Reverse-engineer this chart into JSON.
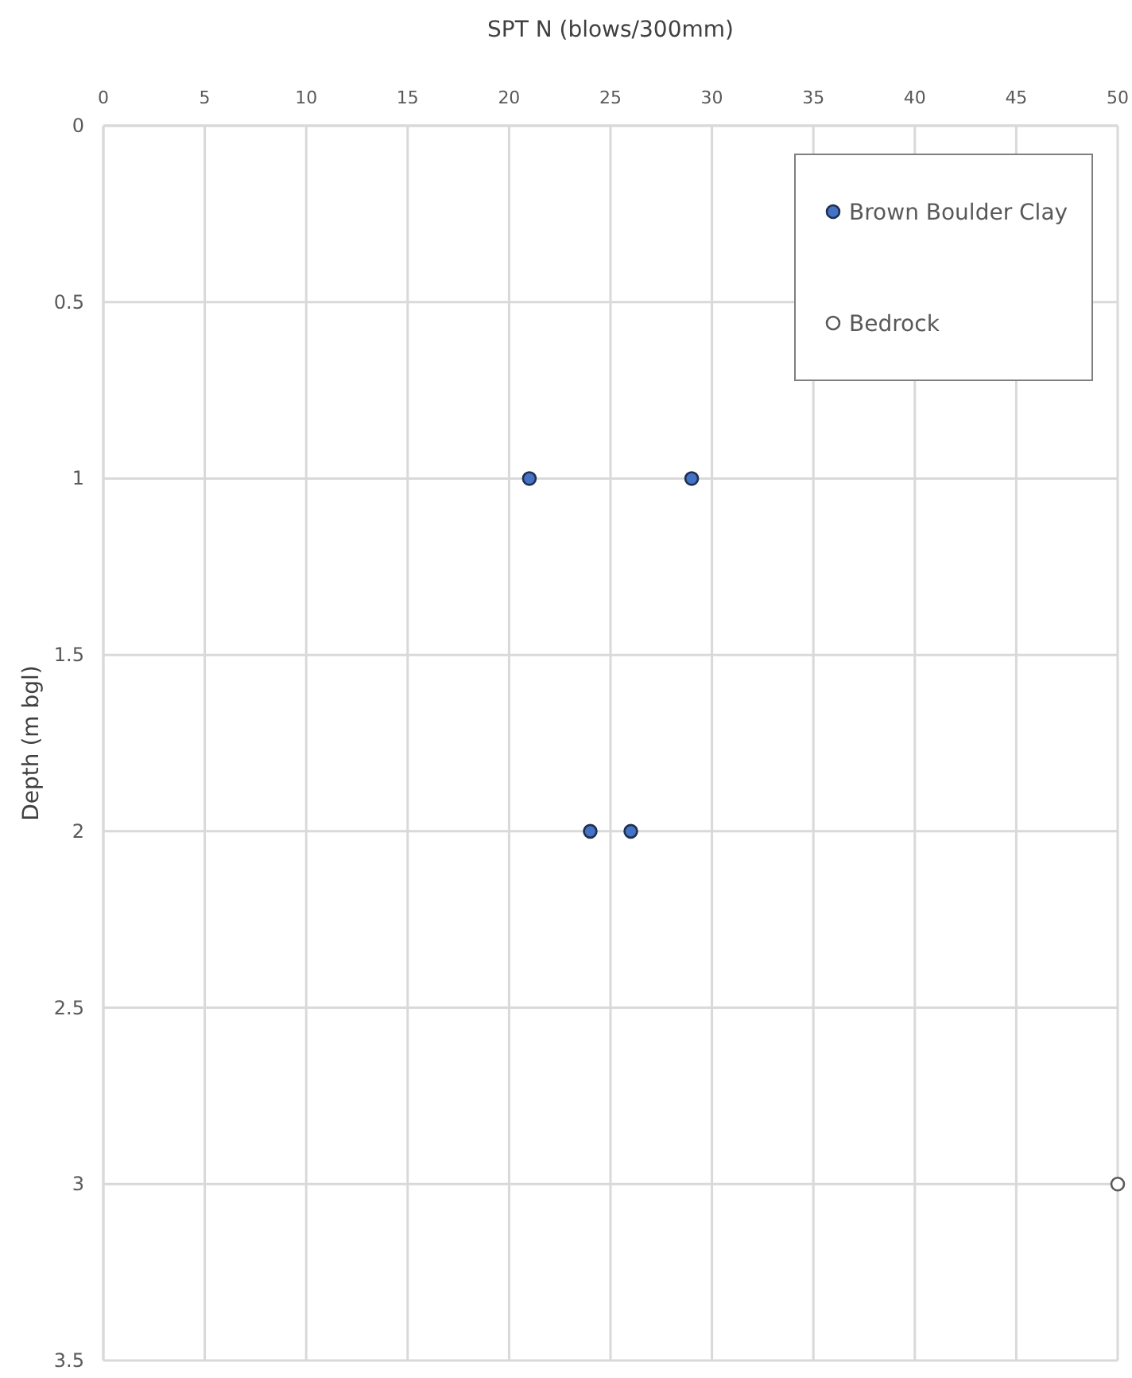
{
  "chart_data": {
    "type": "scatter",
    "xlabel": "SPT N (blows/300mm)",
    "ylabel": "Depth  (m bgl)",
    "xlim": [
      0,
      50
    ],
    "xticks": [
      0,
      5,
      10,
      15,
      20,
      25,
      30,
      35,
      40,
      45,
      50
    ],
    "ylim": [
      3.5,
      0
    ],
    "yticks": [
      0,
      0.5,
      1,
      1.5,
      2,
      2.5,
      3,
      3.5
    ],
    "grid": true,
    "legend": "top right",
    "marker": "circle",
    "series": [
      {
        "name": "Brown Boulder Clay",
        "color": "#4472c4",
        "x": [
          21,
          29,
          24,
          26
        ],
        "values": [
          1,
          1,
          2,
          2
        ]
      },
      {
        "name": "Bedrock",
        "color": "#ffffff",
        "x": [
          50
        ],
        "values": [
          3
        ]
      }
    ]
  }
}
